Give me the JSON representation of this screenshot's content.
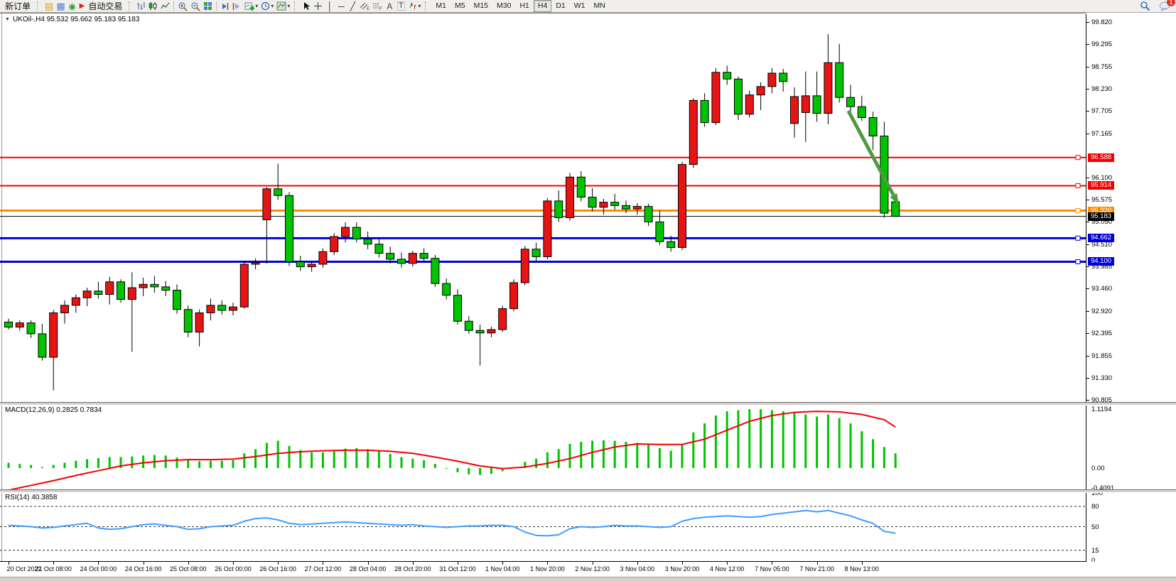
{
  "toolbar": {
    "new_order_label": "新订单",
    "auto_trading_label": "自动交易",
    "timeframes": [
      "M1",
      "M5",
      "M15",
      "M30",
      "H1",
      "H4",
      "D1",
      "W1",
      "MN"
    ],
    "active_timeframe": "H4",
    "notification_count": "1"
  },
  "icons": {
    "title_dropdown": "▼",
    "dropdown": "▾",
    "profile": "▤",
    "market_watch": "▦",
    "signal": "◉",
    "autoplay": "▶",
    "crosshair": "+",
    "vline": "│",
    "hline": "─",
    "trendline": "╱",
    "text_tool": "A",
    "label_tool": "T"
  },
  "chart": {
    "title": "UKOil-,H4 95.532 95.662 95.183 95.183",
    "symbol": "UKOil-",
    "period": "H4"
  },
  "chart_data": {
    "type": "candlestick",
    "title": "UKOil-,H4 95.532 95.662 95.183 95.183",
    "open": 95.532,
    "high": 95.662,
    "low": 95.183,
    "close": 95.183,
    "up_color": "#e81414",
    "down_color": "#00c400",
    "wick_color": "#000000",
    "price_axis_ticks": [
      "99.820",
      "99.295",
      "98.755",
      "98.230",
      "97.705",
      "97.165",
      "96.100",
      "95.575",
      "95.050",
      "94.510",
      "93.985",
      "93.460",
      "92.920",
      "92.395",
      "91.855",
      "91.330",
      "90.805"
    ],
    "ylim": [
      90.805,
      99.82
    ],
    "x_labels": [
      "20 Oct 2022",
      "21 Oct 08:00",
      "24 Oct 00:00",
      "24 Oct 16:00",
      "25 Oct 08:00",
      "26 Oct 00:00",
      "26 Oct 16:00",
      "27 Oct 12:00",
      "28 Oct 04:00",
      "28 Oct 20:00",
      "31 Oct 12:00",
      "1 Nov 04:00",
      "1 Nov 20:00",
      "2 Nov 12:00",
      "3 Nov 04:00",
      "3 Nov 20:00",
      "4 Nov 12:00",
      "7 Nov 05:00",
      "7 Nov 21:00",
      "8 Nov 13:00"
    ],
    "bars_per_x_label": 4,
    "ohlc": [
      [
        92.66,
        92.74,
        92.48,
        92.54
      ],
      [
        92.54,
        92.7,
        92.46,
        92.64
      ],
      [
        92.64,
        92.7,
        92.28,
        92.38
      ],
      [
        92.38,
        92.62,
        91.74,
        91.82
      ],
      [
        91.82,
        92.95,
        91.03,
        92.88
      ],
      [
        92.88,
        93.18,
        92.62,
        93.06
      ],
      [
        93.06,
        93.32,
        92.88,
        93.24
      ],
      [
        93.24,
        93.48,
        93.04,
        93.4
      ],
      [
        93.4,
        93.62,
        93.22,
        93.32
      ],
      [
        93.32,
        93.74,
        93.08,
        93.62
      ],
      [
        93.62,
        93.68,
        93.12,
        93.2
      ],
      [
        93.2,
        93.85,
        91.95,
        93.48
      ],
      [
        93.48,
        93.72,
        93.28,
        93.56
      ],
      [
        93.56,
        93.76,
        93.36,
        93.5
      ],
      [
        93.5,
        93.64,
        93.28,
        93.42
      ],
      [
        93.42,
        93.56,
        92.86,
        92.96
      ],
      [
        92.96,
        93.06,
        92.3,
        92.42
      ],
      [
        92.42,
        92.96,
        92.08,
        92.88
      ],
      [
        92.88,
        93.22,
        92.7,
        93.06
      ],
      [
        93.06,
        93.18,
        92.84,
        92.94
      ],
      [
        92.94,
        93.12,
        92.82,
        93.02
      ],
      [
        93.02,
        94.12,
        92.98,
        94.04
      ],
      [
        94.04,
        94.18,
        93.92,
        94.08
      ],
      [
        95.1,
        95.88,
        94.06,
        95.84
      ],
      [
        95.84,
        96.44,
        95.58,
        95.68
      ],
      [
        95.68,
        95.76,
        94.0,
        94.1
      ],
      [
        94.1,
        94.24,
        93.88,
        93.98
      ],
      [
        93.98,
        94.12,
        93.86,
        94.04
      ],
      [
        94.04,
        94.42,
        93.96,
        94.34
      ],
      [
        94.34,
        94.78,
        94.26,
        94.7
      ],
      [
        94.7,
        95.04,
        94.56,
        94.92
      ],
      [
        94.92,
        95.04,
        94.56,
        94.64
      ],
      [
        94.64,
        94.82,
        94.4,
        94.52
      ],
      [
        94.52,
        94.66,
        94.2,
        94.3
      ],
      [
        94.3,
        94.46,
        94.06,
        94.16
      ],
      [
        94.16,
        94.32,
        93.96,
        94.06
      ],
      [
        94.06,
        94.36,
        93.98,
        94.3
      ],
      [
        94.3,
        94.42,
        94.1,
        94.18
      ],
      [
        94.18,
        94.26,
        93.5,
        93.58
      ],
      [
        93.58,
        93.7,
        93.2,
        93.3
      ],
      [
        93.3,
        93.44,
        92.6,
        92.68
      ],
      [
        92.68,
        92.8,
        92.38,
        92.46
      ],
      [
        92.46,
        92.6,
        91.62,
        92.4
      ],
      [
        92.4,
        92.55,
        92.3,
        92.48
      ],
      [
        92.48,
        93.05,
        92.42,
        92.98
      ],
      [
        92.98,
        93.68,
        92.92,
        93.6
      ],
      [
        93.6,
        94.48,
        93.54,
        94.4
      ],
      [
        94.4,
        94.55,
        94.12,
        94.22
      ],
      [
        94.22,
        95.62,
        94.16,
        95.55
      ],
      [
        95.55,
        95.8,
        95.05,
        95.15
      ],
      [
        95.15,
        96.22,
        95.08,
        96.12
      ],
      [
        96.12,
        96.26,
        95.54,
        95.64
      ],
      [
        95.64,
        95.86,
        95.3,
        95.4
      ],
      [
        95.4,
        95.6,
        95.22,
        95.52
      ],
      [
        95.52,
        95.72,
        95.34,
        95.44
      ],
      [
        95.44,
        95.56,
        95.26,
        95.36
      ],
      [
        95.36,
        95.5,
        95.22,
        95.42
      ],
      [
        95.42,
        95.48,
        94.95,
        95.05
      ],
      [
        95.05,
        95.32,
        94.5,
        94.58
      ],
      [
        94.58,
        94.72,
        94.34,
        94.44
      ],
      [
        94.44,
        96.48,
        94.38,
        96.42
      ],
      [
        96.42,
        98.0,
        96.34,
        97.95
      ],
      [
        97.95,
        98.12,
        97.32,
        97.42
      ],
      [
        97.42,
        98.72,
        97.36,
        98.62
      ],
      [
        98.62,
        98.78,
        98.32,
        98.46
      ],
      [
        98.46,
        98.52,
        97.48,
        97.62
      ],
      [
        97.62,
        98.18,
        97.54,
        98.08
      ],
      [
        98.08,
        98.38,
        97.72,
        98.28
      ],
      [
        98.28,
        98.72,
        98.12,
        98.6
      ],
      [
        98.6,
        98.7,
        98.16,
        98.4
      ],
      [
        97.4,
        98.26,
        97.06,
        98.04
      ],
      [
        97.66,
        98.64,
        96.96,
        98.06
      ],
      [
        98.06,
        98.64,
        97.44,
        97.64
      ],
      [
        97.64,
        99.53,
        97.38,
        98.85
      ],
      [
        98.85,
        99.3,
        97.9,
        98.02
      ],
      [
        98.02,
        98.32,
        97.66,
        97.8
      ],
      [
        97.8,
        98.06,
        97.46,
        97.54
      ],
      [
        97.54,
        97.68,
        96.76,
        97.1
      ],
      [
        97.1,
        97.44,
        95.15,
        95.26
      ],
      [
        95.532,
        95.662,
        95.183,
        95.183
      ]
    ],
    "hlines": [
      {
        "price": 96.588,
        "label": "96.588",
        "color": "#f40000",
        "width": 2
      },
      {
        "price": 95.914,
        "label": "95.914",
        "color": "#f40000",
        "width": 2
      },
      {
        "price": 95.32,
        "label": "95.320",
        "color": "#ff8c00",
        "width": 3
      },
      {
        "price": 94.662,
        "label": "94.662",
        "color": "#0000d8",
        "width": 3
      },
      {
        "price": 94.1,
        "label": "94.100",
        "color": "#0000d8",
        "width": 3
      }
    ],
    "current_price": {
      "value": 95.183,
      "label": "95.183",
      "color": "#000000"
    },
    "arrow_annotation": {
      "start_bar": 74.8,
      "start_price": 97.7,
      "end_bar": 79.3,
      "end_price": 95.45,
      "color": "#4e9a40"
    },
    "macd": {
      "label": "MACD(12,26,9) 0.2825 0.7834",
      "macd_value": 0.2825,
      "signal_value": 0.7834,
      "axis": {
        "max_label": "1.1194",
        "zero_label": "0.00",
        "min_label": "-0.4091",
        "max": 1.1194,
        "min": -0.4091
      },
      "histogram_color": "#00c400",
      "signal_color": "#f40000",
      "values": [
        0.1,
        0.08,
        0.06,
        0.02,
        0.06,
        0.1,
        0.14,
        0.17,
        0.19,
        0.21,
        0.21,
        0.22,
        0.24,
        0.25,
        0.24,
        0.2,
        0.15,
        0.13,
        0.14,
        0.14,
        0.15,
        0.28,
        0.36,
        0.48,
        0.52,
        0.42,
        0.34,
        0.3,
        0.3,
        0.33,
        0.37,
        0.38,
        0.36,
        0.32,
        0.27,
        0.21,
        0.18,
        0.15,
        0.08,
        0.0,
        -0.08,
        -0.12,
        -0.13,
        -0.11,
        -0.06,
        0.02,
        0.12,
        0.18,
        0.3,
        0.36,
        0.46,
        0.5,
        0.52,
        0.53,
        0.52,
        0.5,
        0.48,
        0.44,
        0.38,
        0.33,
        0.45,
        0.68,
        0.85,
        1.0,
        1.08,
        1.1,
        1.12,
        1.12,
        1.1,
        1.08,
        1.05,
        1.02,
        0.98,
        1.02,
        0.95,
        0.85,
        0.7,
        0.55,
        0.4,
        0.28
      ],
      "signal": [
        [
          0,
          -0.42
        ],
        [
          2,
          -0.33
        ],
        [
          4,
          -0.24
        ],
        [
          6,
          -0.14
        ],
        [
          8,
          -0.05
        ],
        [
          10,
          0.04
        ],
        [
          12,
          0.1
        ],
        [
          14,
          0.14
        ],
        [
          16,
          0.16
        ],
        [
          18,
          0.16
        ],
        [
          20,
          0.17
        ],
        [
          22,
          0.22
        ],
        [
          24,
          0.28
        ],
        [
          26,
          0.31
        ],
        [
          28,
          0.33
        ],
        [
          30,
          0.34
        ],
        [
          32,
          0.34
        ],
        [
          34,
          0.32
        ],
        [
          36,
          0.28
        ],
        [
          38,
          0.21
        ],
        [
          40,
          0.13
        ],
        [
          42,
          0.04
        ],
        [
          44,
          -0.01
        ],
        [
          46,
          0.02
        ],
        [
          48,
          0.09
        ],
        [
          50,
          0.18
        ],
        [
          52,
          0.3
        ],
        [
          54,
          0.4
        ],
        [
          56,
          0.46
        ],
        [
          58,
          0.45
        ],
        [
          60,
          0.45
        ],
        [
          62,
          0.55
        ],
        [
          64,
          0.72
        ],
        [
          66,
          0.89
        ],
        [
          68,
          1.0
        ],
        [
          70,
          1.06
        ],
        [
          72,
          1.08
        ],
        [
          74,
          1.07
        ],
        [
          76,
          1.02
        ],
        [
          78,
          0.92
        ],
        [
          79,
          0.78
        ]
      ]
    },
    "rsi": {
      "label": "RSI(14) 40.3858",
      "last_value": 40.3858,
      "line_color": "#3e9eff",
      "levels": [
        80,
        50,
        15
      ],
      "axis_labels": [
        {
          "text": "100",
          "value": 100
        },
        {
          "text": "80",
          "value": 80
        },
        {
          "text": "50",
          "value": 50
        },
        {
          "text": "15",
          "value": 15
        },
        {
          "text": "0",
          "value": 0
        }
      ],
      "values": [
        52,
        51,
        50,
        48,
        49,
        51,
        53,
        55,
        48,
        46,
        47,
        50,
        53,
        54,
        52,
        50,
        46,
        47,
        50,
        51,
        52,
        58,
        62,
        63,
        60,
        55,
        53,
        54,
        55,
        56,
        57,
        56,
        55,
        54,
        53,
        52,
        53,
        51,
        50,
        49,
        50,
        51,
        51,
        52,
        52,
        50,
        42,
        37,
        36.5,
        38,
        47,
        50,
        49,
        50,
        52,
        51,
        51,
        50,
        49,
        50,
        58,
        62,
        64,
        65,
        66,
        65,
        64,
        65,
        68,
        70,
        72,
        74,
        72,
        74,
        70,
        66,
        60,
        55,
        43,
        40.39
      ]
    }
  }
}
